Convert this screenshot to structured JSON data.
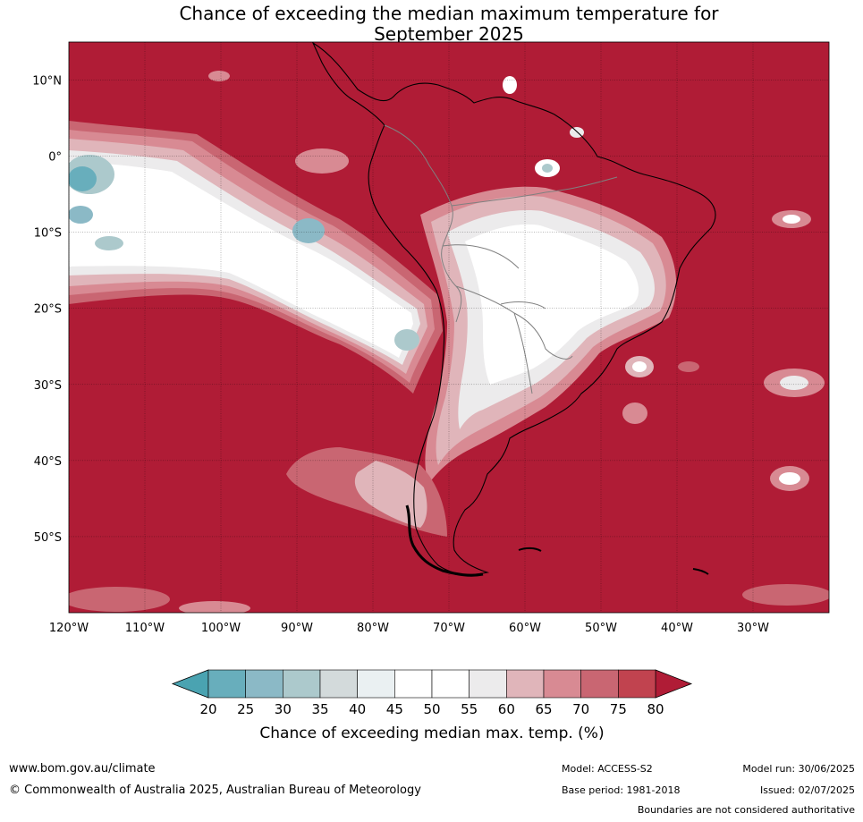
{
  "title_line1": "Chance of exceeding the median maximum temperature for",
  "title_line2": "September 2025",
  "map": {
    "lon_range": [
      -120,
      -20
    ],
    "lat_range": [
      -60,
      15
    ],
    "lat_ticks": [
      {
        "value": 10,
        "label": "10°N"
      },
      {
        "value": 0,
        "label": "0°"
      },
      {
        "value": -10,
        "label": "10°S"
      },
      {
        "value": -20,
        "label": "20°S"
      },
      {
        "value": -30,
        "label": "30°S"
      },
      {
        "value": -40,
        "label": "40°S"
      },
      {
        "value": -50,
        "label": "50°S"
      }
    ],
    "lon_ticks": [
      {
        "value": -120,
        "label": "120°W"
      },
      {
        "value": -110,
        "label": "110°W"
      },
      {
        "value": -100,
        "label": "100°W"
      },
      {
        "value": -90,
        "label": "90°W"
      },
      {
        "value": -80,
        "label": "80°W"
      },
      {
        "value": -70,
        "label": "70°W"
      },
      {
        "value": -60,
        "label": "60°W"
      },
      {
        "value": -50,
        "label": "50°W"
      },
      {
        "value": -40,
        "label": "40°W"
      },
      {
        "value": -30,
        "label": "30°W"
      }
    ],
    "background_color": "#b01c36"
  },
  "colorbar": {
    "title": "Chance of exceeding median max. temp. (%)",
    "levels": [
      "20",
      "25",
      "30",
      "35",
      "40",
      "45",
      "50",
      "55",
      "60",
      "65",
      "70",
      "75",
      "80"
    ],
    "under_color": "#4aa3b1",
    "over_color": "#b01c36",
    "colors": [
      "#68aebc",
      "#8bb9c6",
      "#acc9cc",
      "#d3dadb",
      "#eaf0f2",
      "#ffffff",
      "#ffffff",
      "#ecebec",
      "#e0b5ba",
      "#d88a93",
      "#c96672",
      "#c1434f"
    ]
  },
  "footer": {
    "url": "www.bom.gov.au/climate",
    "copyright": "© Commonwealth of Australia 2025, Australian Bureau of Meteorology",
    "model": "Model: ACCESS-S2",
    "base_period": "Base period: 1981-2018",
    "model_run": "Model run: 30/06/2025",
    "issued": "Issued: 02/07/2025",
    "disclaimer": "Boundaries are not considered authoritative"
  }
}
